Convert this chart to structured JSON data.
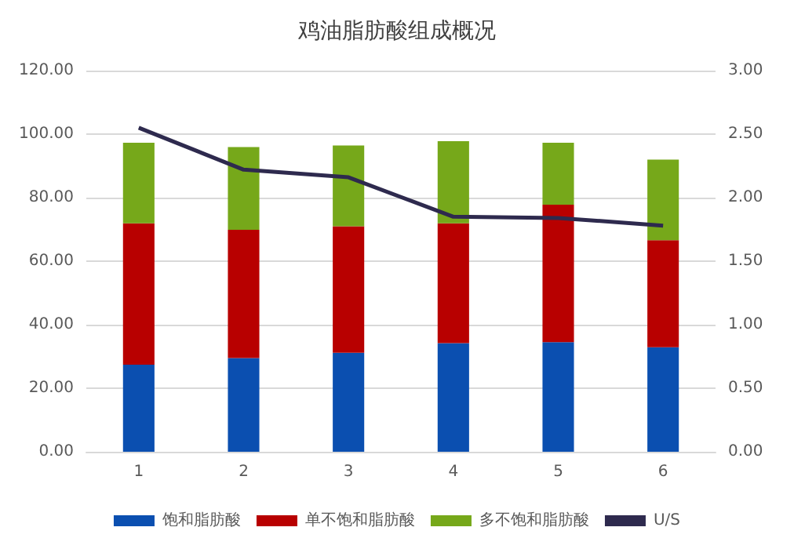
{
  "chart_data": {
    "type": "bar",
    "title": "鸡油脂肪酸组成概况",
    "stacked": true,
    "categories": [
      "1",
      "2",
      "3",
      "4",
      "5",
      "6"
    ],
    "series": [
      {
        "name": "饱和脂肪酸",
        "color": "#0b4fb0",
        "values": [
          27.4,
          29.5,
          31.2,
          34.2,
          34.5,
          32.9
        ]
      },
      {
        "name": "单不饱和脂肪酸",
        "color": "#b80000",
        "values": [
          44.5,
          40.4,
          39.8,
          37.7,
          43.3,
          33.7
        ]
      },
      {
        "name": "多不饱和脂肪酸",
        "color": "#76a81a",
        "values": [
          25.4,
          26.0,
          25.4,
          25.9,
          19.5,
          25.4
        ]
      },
      {
        "name": "U/S",
        "type": "line",
        "axis": "y2",
        "color": "#2e2a4e",
        "values": [
          2.55,
          2.22,
          2.16,
          1.85,
          1.84,
          1.78
        ]
      }
    ],
    "ylim": [
      0,
      120
    ],
    "yticks": [
      {
        "value": 0,
        "label": "0.00"
      },
      {
        "value": 20,
        "label": "20.00"
      },
      {
        "value": 40,
        "label": "40.00"
      },
      {
        "value": 60,
        "label": "60.00"
      },
      {
        "value": 80,
        "label": "80.00"
      },
      {
        "value": 100,
        "label": "100.00"
      },
      {
        "value": 120,
        "label": "120.00"
      }
    ],
    "y2lim": [
      0,
      3
    ],
    "y2ticks": [
      {
        "value": 0,
        "label": "0.00"
      },
      {
        "value": 0.5,
        "label": "0.50"
      },
      {
        "value": 1,
        "label": "1.00"
      },
      {
        "value": 1.5,
        "label": "1.50"
      },
      {
        "value": 2,
        "label": "2.00"
      },
      {
        "value": 2.5,
        "label": "2.50"
      },
      {
        "value": 3,
        "label": "3.00"
      }
    ],
    "grid": "y",
    "legend": "bottom",
    "marker": "none"
  }
}
